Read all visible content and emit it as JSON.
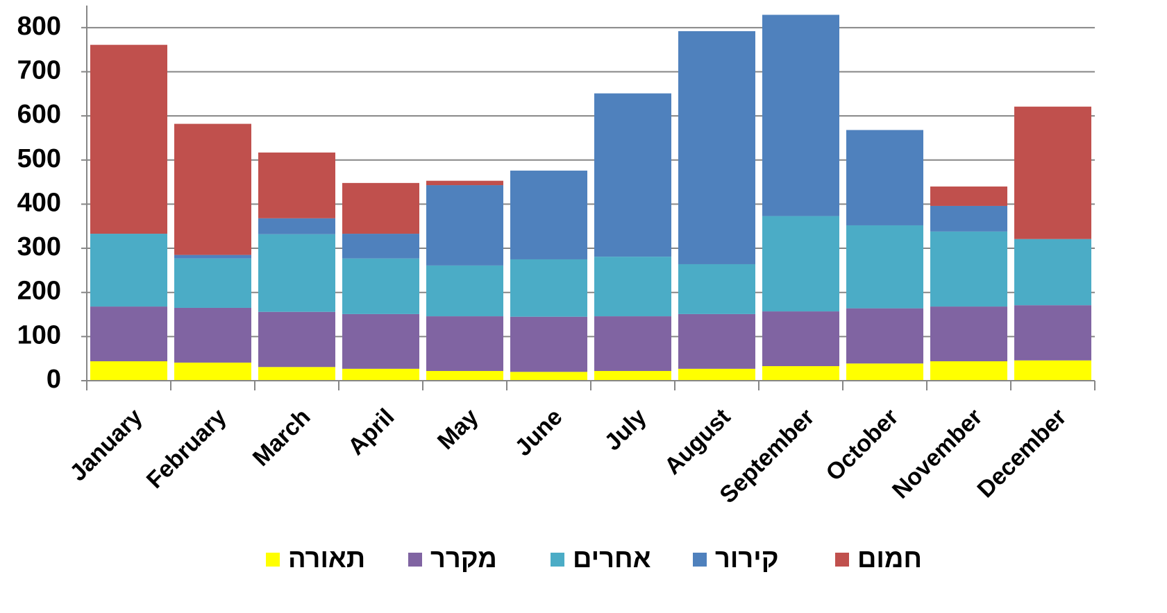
{
  "chart_data": {
    "type": "stacked_bar",
    "categories": [
      "January",
      "February",
      "March",
      "April",
      "May",
      "June",
      "July",
      "August",
      "September",
      "October",
      "November",
      "December"
    ],
    "series": [
      {
        "name": "תאורה",
        "color": "#ffff00",
        "values": [
          44,
          41,
          31,
          27,
          22,
          20,
          22,
          27,
          33,
          39,
          44,
          46
        ]
      },
      {
        "name": "מקרר",
        "color": "#8064a2",
        "values": [
          124,
          124,
          125,
          124,
          124,
          125,
          124,
          124,
          124,
          125,
          124,
          125
        ]
      },
      {
        "name": "אחרים",
        "color": "#4bacc6",
        "values": [
          165,
          112,
          176,
          126,
          115,
          130,
          135,
          113,
          216,
          188,
          170,
          150
        ]
      },
      {
        "name": "קירור",
        "color": "#4f81bd",
        "values": [
          0,
          8,
          36,
          56,
          182,
          201,
          370,
          528,
          456,
          216,
          58,
          0
        ]
      },
      {
        "name": "חמום",
        "color": "#c0504d",
        "values": [
          428,
          297,
          149,
          115,
          10,
          0,
          0,
          0,
          0,
          0,
          44,
          300
        ]
      }
    ],
    "ylim": [
      0,
      850
    ],
    "yticks": [
      0,
      100,
      200,
      300,
      400,
      500,
      600,
      700,
      800
    ],
    "grid": true
  }
}
